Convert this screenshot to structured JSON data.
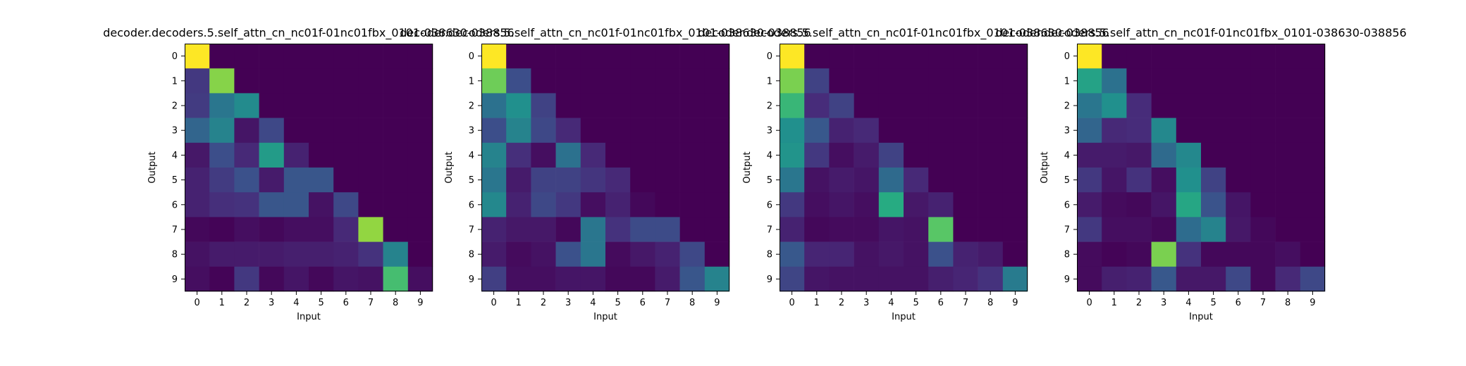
{
  "chart_data": [
    {
      "type": "heatmap",
      "title": "decoder.decoders.5.self_attn_cn_nc01f-01nc01fbx_0101-038630-038856",
      "xlabel": "Input",
      "ylabel": "Output",
      "x_ticks": [
        "0",
        "1",
        "2",
        "3",
        "4",
        "5",
        "6",
        "7",
        "8",
        "9"
      ],
      "y_ticks": [
        "0",
        "1",
        "2",
        "3",
        "4",
        "5",
        "6",
        "7",
        "8",
        "9"
      ],
      "colormap": "viridis",
      "values": [
        [
          1.0,
          0.0,
          0.0,
          0.0,
          0.0,
          0.0,
          0.0,
          0.0,
          0.0,
          0.0
        ],
        [
          0.17,
          0.82,
          0.0,
          0.0,
          0.0,
          0.0,
          0.0,
          0.0,
          0.0,
          0.0
        ],
        [
          0.18,
          0.4,
          0.48,
          0.0,
          0.0,
          0.0,
          0.0,
          0.0,
          0.0,
          0.0
        ],
        [
          0.33,
          0.45,
          0.06,
          0.22,
          0.0,
          0.0,
          0.0,
          0.0,
          0.0,
          0.0
        ],
        [
          0.07,
          0.24,
          0.12,
          0.55,
          0.1,
          0.0,
          0.0,
          0.0,
          0.0,
          0.0
        ],
        [
          0.1,
          0.18,
          0.25,
          0.08,
          0.27,
          0.27,
          0.0,
          0.0,
          0.0,
          0.0
        ],
        [
          0.1,
          0.14,
          0.15,
          0.27,
          0.27,
          0.05,
          0.22,
          0.0,
          0.0,
          0.0
        ],
        [
          0.02,
          0.01,
          0.04,
          0.02,
          0.04,
          0.04,
          0.12,
          0.84,
          0.0,
          0.0
        ],
        [
          0.05,
          0.08,
          0.08,
          0.08,
          0.09,
          0.09,
          0.1,
          0.15,
          0.45,
          0.0
        ],
        [
          0.04,
          0.01,
          0.17,
          0.02,
          0.06,
          0.02,
          0.06,
          0.05,
          0.7,
          0.04
        ]
      ]
    },
    {
      "type": "heatmap",
      "title": "decoder.decoders.5.self_attn_cn_nc01f-01nc01fbx_0101-038630-038856",
      "xlabel": "Input",
      "ylabel": "Output",
      "x_ticks": [
        "0",
        "1",
        "2",
        "3",
        "4",
        "5",
        "6",
        "7",
        "8",
        "9"
      ],
      "y_ticks": [
        "0",
        "1",
        "2",
        "3",
        "4",
        "5",
        "6",
        "7",
        "8",
        "9"
      ],
      "colormap": "viridis",
      "values": [
        [
          1.0,
          0.0,
          0.0,
          0.0,
          0.0,
          0.0,
          0.0,
          0.0,
          0.0,
          0.0
        ],
        [
          0.78,
          0.24,
          0.0,
          0.0,
          0.0,
          0.0,
          0.0,
          0.0,
          0.0,
          0.0
        ],
        [
          0.38,
          0.5,
          0.2,
          0.0,
          0.0,
          0.0,
          0.0,
          0.0,
          0.0,
          0.0
        ],
        [
          0.24,
          0.45,
          0.22,
          0.12,
          0.0,
          0.0,
          0.0,
          0.0,
          0.0,
          0.0
        ],
        [
          0.45,
          0.14,
          0.04,
          0.38,
          0.12,
          0.0,
          0.0,
          0.0,
          0.0,
          0.0
        ],
        [
          0.4,
          0.08,
          0.2,
          0.2,
          0.16,
          0.12,
          0.0,
          0.0,
          0.0,
          0.0
        ],
        [
          0.47,
          0.1,
          0.22,
          0.17,
          0.04,
          0.1,
          0.02,
          0.0,
          0.0,
          0.0
        ],
        [
          0.1,
          0.07,
          0.07,
          0.02,
          0.4,
          0.15,
          0.23,
          0.23,
          0.0,
          0.0
        ],
        [
          0.08,
          0.03,
          0.05,
          0.25,
          0.4,
          0.03,
          0.07,
          0.1,
          0.22,
          0.0
        ],
        [
          0.19,
          0.04,
          0.04,
          0.06,
          0.06,
          0.02,
          0.02,
          0.08,
          0.27,
          0.45
        ]
      ]
    },
    {
      "type": "heatmap",
      "title": "decoder.decoders.5.self_attn_cn_nc01f-01nc01fbx_0101-038630-038856",
      "xlabel": "Input",
      "ylabel": "Output",
      "x_ticks": [
        "0",
        "1",
        "2",
        "3",
        "4",
        "5",
        "6",
        "7",
        "8",
        "9"
      ],
      "y_ticks": [
        "0",
        "1",
        "2",
        "3",
        "4",
        "5",
        "6",
        "7",
        "8",
        "9"
      ],
      "colormap": "viridis",
      "values": [
        [
          1.0,
          0.0,
          0.0,
          0.0,
          0.0,
          0.0,
          0.0,
          0.0,
          0.0,
          0.0
        ],
        [
          0.8,
          0.2,
          0.0,
          0.0,
          0.0,
          0.0,
          0.0,
          0.0,
          0.0,
          0.0
        ],
        [
          0.67,
          0.13,
          0.2,
          0.0,
          0.0,
          0.0,
          0.0,
          0.0,
          0.0,
          0.0
        ],
        [
          0.5,
          0.28,
          0.1,
          0.12,
          0.0,
          0.0,
          0.0,
          0.0,
          0.0,
          0.0
        ],
        [
          0.52,
          0.17,
          0.04,
          0.08,
          0.2,
          0.0,
          0.0,
          0.0,
          0.0,
          0.0
        ],
        [
          0.4,
          0.05,
          0.08,
          0.06,
          0.35,
          0.12,
          0.0,
          0.0,
          0.0,
          0.0
        ],
        [
          0.17,
          0.04,
          0.06,
          0.04,
          0.62,
          0.07,
          0.1,
          0.0,
          0.0,
          0.0
        ],
        [
          0.1,
          0.02,
          0.03,
          0.03,
          0.06,
          0.05,
          0.74,
          0.0,
          0.0,
          0.0
        ],
        [
          0.28,
          0.11,
          0.11,
          0.05,
          0.07,
          0.05,
          0.25,
          0.1,
          0.08,
          0.0
        ],
        [
          0.21,
          0.06,
          0.05,
          0.05,
          0.05,
          0.05,
          0.09,
          0.11,
          0.15,
          0.42
        ]
      ]
    },
    {
      "type": "heatmap",
      "title": "decoder.decoders.5.self_attn_cn_nc01f-01nc01fbx_0101-038630-038856",
      "xlabel": "Input",
      "ylabel": "Output",
      "x_ticks": [
        "0",
        "1",
        "2",
        "3",
        "4",
        "5",
        "6",
        "7",
        "8",
        "9"
      ],
      "y_ticks": [
        "0",
        "1",
        "2",
        "3",
        "4",
        "5",
        "6",
        "7",
        "8",
        "9"
      ],
      "colormap": "viridis",
      "values": [
        [
          1.0,
          0.0,
          0.0,
          0.0,
          0.0,
          0.0,
          0.0,
          0.0,
          0.0,
          0.0
        ],
        [
          0.58,
          0.38,
          0.0,
          0.0,
          0.0,
          0.0,
          0.0,
          0.0,
          0.0,
          0.0
        ],
        [
          0.4,
          0.5,
          0.13,
          0.0,
          0.0,
          0.0,
          0.0,
          0.0,
          0.0,
          0.0
        ],
        [
          0.33,
          0.12,
          0.13,
          0.47,
          0.0,
          0.0,
          0.0,
          0.0,
          0.0,
          0.0
        ],
        [
          0.08,
          0.08,
          0.07,
          0.35,
          0.47,
          0.0,
          0.0,
          0.0,
          0.0,
          0.0
        ],
        [
          0.17,
          0.06,
          0.15,
          0.04,
          0.5,
          0.2,
          0.0,
          0.0,
          0.0,
          0.0
        ],
        [
          0.08,
          0.03,
          0.02,
          0.06,
          0.6,
          0.26,
          0.06,
          0.0,
          0.0,
          0.0
        ],
        [
          0.17,
          0.04,
          0.04,
          0.02,
          0.36,
          0.45,
          0.07,
          0.02,
          0.0,
          0.0
        ],
        [
          0.03,
          0.01,
          0.02,
          0.8,
          0.15,
          0.02,
          0.02,
          0.02,
          0.04,
          0.0
        ],
        [
          0.03,
          0.09,
          0.1,
          0.28,
          0.07,
          0.07,
          0.22,
          0.02,
          0.12,
          0.22
        ]
      ]
    }
  ]
}
